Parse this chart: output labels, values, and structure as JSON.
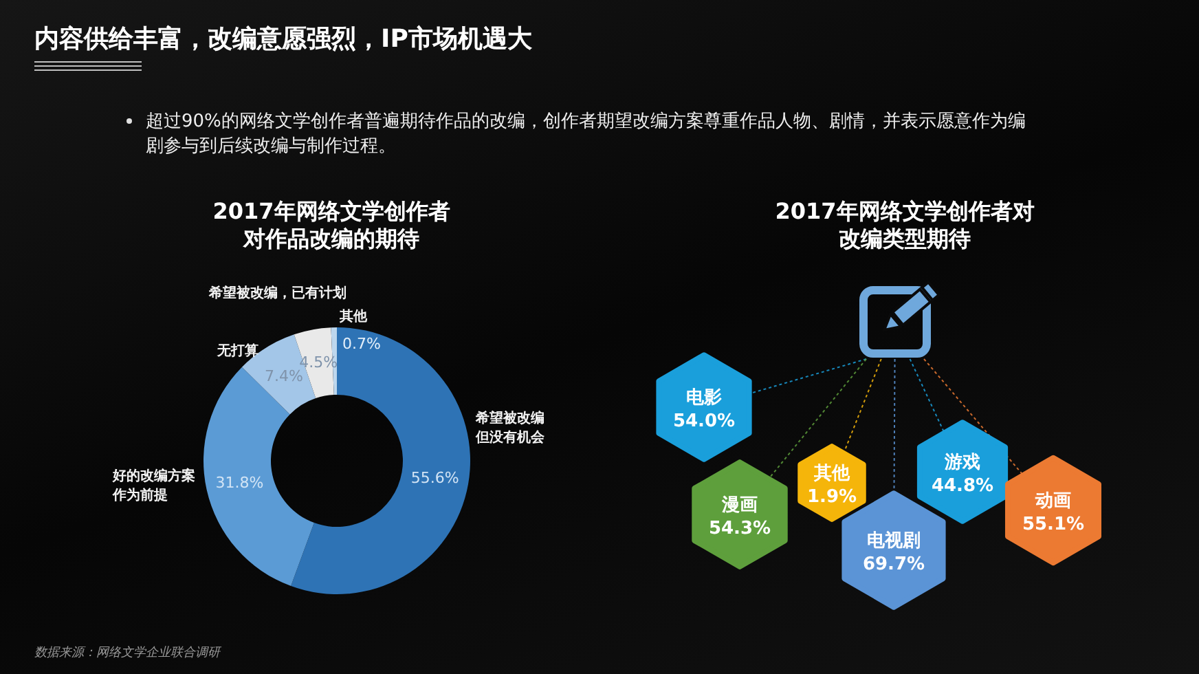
{
  "chart_data": [
    {
      "type": "other",
      "title": "内容供给丰富，改编意愿强烈，IP市场机遇大",
      "subtitle": "超过90%的网络文学创作者普遍期待作品的改编，创作者期望改编方案尊重作品人物、剧情，并表示愿意作为编剧参与到后续改编与制作过程。"
    },
    {
      "type": "donut",
      "title": "2017年网络文学创作者对作品改编的期待",
      "categories": [
        "希望被改编但没有机会",
        "好的改编方案作为前提",
        "无打算",
        "希望被改编，已有计划",
        "其他"
      ],
      "values": [
        55.6,
        31.8,
        7.4,
        4.5,
        0.7
      ],
      "colors": [
        "#2e73b5",
        "#5b9bd5",
        "#a3c6e8",
        "#e9e9e9",
        "#bdd7ee"
      ],
      "value_labels": [
        "55.6%",
        "31.8%",
        "7.4%",
        "4.5%",
        "0.7%"
      ],
      "annotations": [
        "数据来源：网络文学企业联合调研"
      ]
    },
    {
      "type": "other",
      "title": "2017年网络文学创作者对改编类型期待",
      "categories": [
        "电影",
        "漫画",
        "其他",
        "电视剧",
        "游戏",
        "动画"
      ],
      "values": [
        54.0,
        54.3,
        1.9,
        69.7,
        44.8,
        55.1
      ],
      "colors": [
        "#1a9fdb",
        "#5e9f3c",
        "#f5b50a",
        "#5b94d6",
        "#1a9fdb",
        "#ec7a32"
      ],
      "value_labels": [
        "54.0%",
        "54.3%",
        "1.9%",
        "69.7%",
        "44.8%",
        "55.1%"
      ]
    }
  ]
}
